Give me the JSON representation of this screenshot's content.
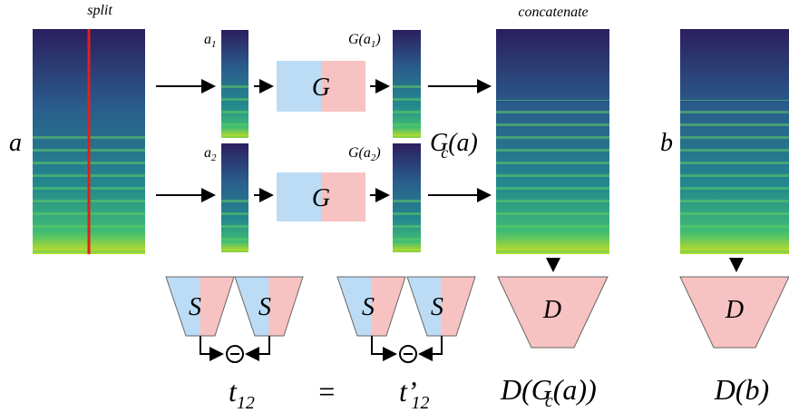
{
  "left": {
    "caption": "split",
    "label": "a"
  },
  "pieces": [
    {
      "base": "a",
      "sub": "1"
    },
    {
      "base": "a",
      "sub": "2"
    }
  ],
  "generator": [
    "G",
    "G"
  ],
  "outputs": [
    {
      "pre": "G(a",
      "sub": "1",
      "post": ")"
    },
    {
      "pre": "G(a",
      "sub": "2",
      "post": ")"
    }
  ],
  "concat": {
    "caption": "concatenate",
    "label": {
      "base": "G",
      "sub": "c",
      "post": "(a)"
    }
  },
  "right": {
    "label": "b"
  },
  "siamese": [
    "S",
    "S",
    "S",
    "S"
  ],
  "discriminators": [
    "D",
    "D"
  ],
  "bottom": {
    "t": {
      "base": "t",
      "sub": "12"
    },
    "equals": "=",
    "t_prime": {
      "base": "t’",
      "sub": "12"
    },
    "d_fake": {
      "pre": "D(G",
      "sub": "c",
      "post": "(a))"
    },
    "d_real": "D(b)"
  }
}
